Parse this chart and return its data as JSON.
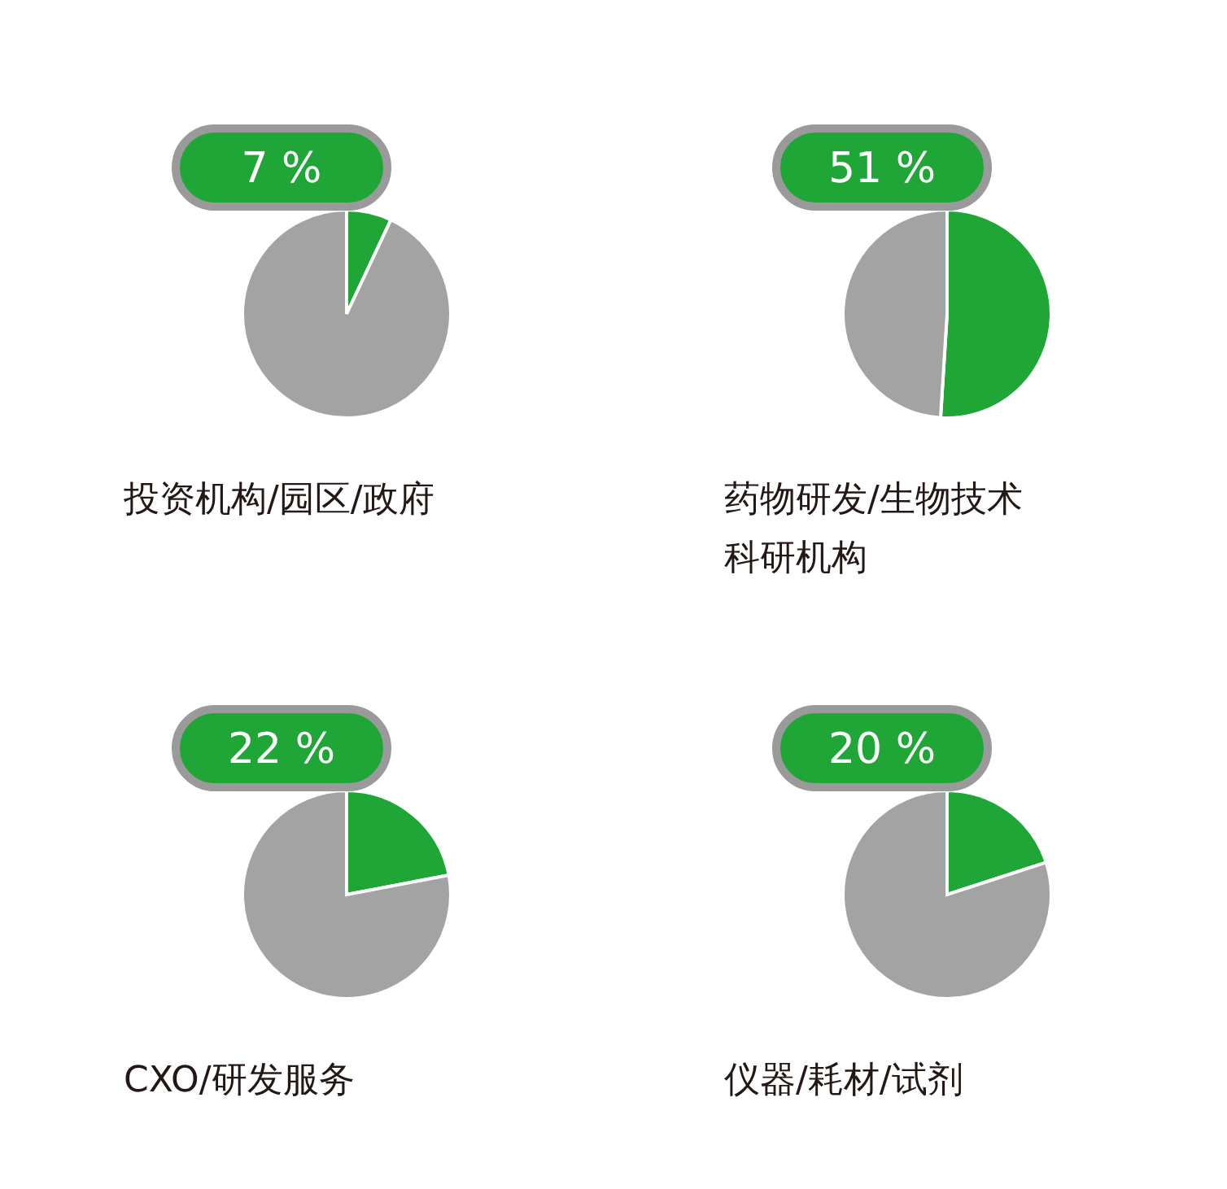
{
  "chart_data": [
    {
      "type": "pie",
      "title": "投资机构/园区/政府",
      "categories": [
        null,
        null
      ],
      "values": [
        7,
        93
      ],
      "colors": [
        "#1fa637",
        "#a3a3a3"
      ],
      "value_labels": [
        "7 %",
        null
      ]
    },
    {
      "type": "pie",
      "title": "药物研发/生物技术科研机构",
      "categories": [
        null,
        null
      ],
      "values": [
        51,
        49
      ],
      "colors": [
        "#1fa637",
        "#a3a3a3"
      ],
      "value_labels": [
        "51 %",
        null
      ]
    },
    {
      "type": "pie",
      "title": "CXO/研发服务",
      "categories": [
        null,
        null
      ],
      "values": [
        22,
        78
      ],
      "colors": [
        "#1fa637",
        "#a3a3a3"
      ],
      "value_labels": [
        "22 %",
        null
      ]
    },
    {
      "type": "pie",
      "title": "仪器/耗材/试剂",
      "categories": [
        null,
        null
      ],
      "values": [
        20,
        80
      ],
      "colors": [
        "#1fa637",
        "#a3a3a3"
      ],
      "value_labels": [
        "20 %",
        null
      ]
    }
  ]
}
